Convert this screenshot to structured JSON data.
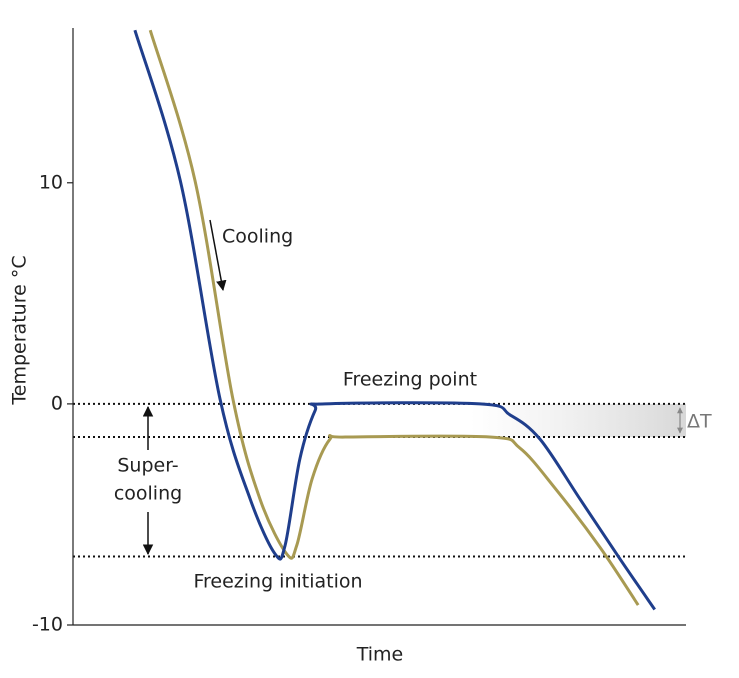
{
  "chart_data": {
    "type": "line",
    "ylabel": "Temperature °C",
    "xlabel": "Time",
    "ylim": [
      -10,
      17
    ],
    "yticks": [
      10,
      0,
      -10
    ],
    "xlim": [
      0,
      100
    ],
    "series": [
      {
        "color": "#1f3e8c",
        "x": [
          10.1,
          17.5,
          24.0,
          28.9,
          33.0,
          34.6,
          37.0,
          39.5,
          41.1,
          66.4,
          71.3,
          76.2,
          82.7,
          89.2,
          94.9
        ],
        "values": [
          16.9,
          10.1,
          0.2,
          -4.3,
          -6.8,
          -6.4,
          -2.5,
          -0.3,
          0,
          0,
          -0.5,
          -1.6,
          -4.3,
          -7.0,
          -9.3
        ]
      },
      {
        "color": "#a89a52",
        "x": [
          12.6,
          19.9,
          26.1,
          30.5,
          34.9,
          36.5,
          39.0,
          41.9,
          44.4,
          68.0,
          72.9,
          78.6,
          86.0,
          92.2
        ],
        "values": [
          16.9,
          10.1,
          0.2,
          -4.3,
          -6.8,
          -6.4,
          -3.4,
          -1.6,
          -1.5,
          -1.5,
          -2.0,
          -3.8,
          -6.5,
          -9.1
        ]
      }
    ],
    "hlines": [
      0,
      -1.5,
      -6.9
    ],
    "annotations": [
      "Cooling",
      "Freezing point",
      "Super-",
      "cooling",
      "Freezing initiation",
      "ΔT"
    ]
  }
}
